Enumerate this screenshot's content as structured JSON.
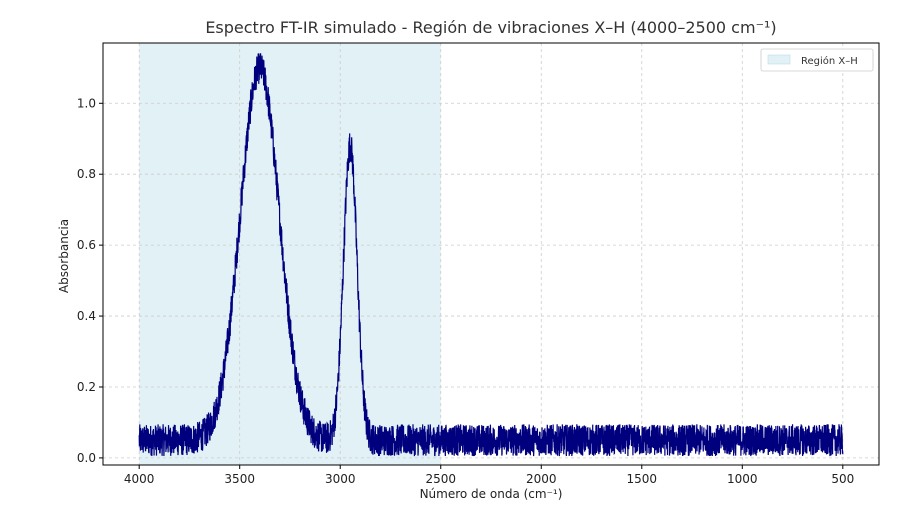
{
  "chart_data": {
    "type": "line",
    "title": "Espectro FT-IR simulado - Región de vibraciones X–H (4000–2500 cm⁻¹)",
    "xlabel": "Número de onda (cm⁻¹)",
    "ylabel": "Absorbancia",
    "x_reversed": true,
    "xlim": [
      4180,
      320
    ],
    "ylim": [
      -0.02,
      1.17
    ],
    "x_ticks": [
      4000,
      3500,
      3000,
      2500,
      2000,
      1500,
      1000,
      500
    ],
    "x_tick_labels": [
      "4000",
      "3500",
      "3000",
      "2500",
      "2000",
      "1500",
      "1000",
      "500"
    ],
    "y_ticks": [
      0.0,
      0.2,
      0.4,
      0.6,
      0.8,
      1.0
    ],
    "y_tick_labels": [
      "0.0",
      "0.2",
      "0.4",
      "0.6",
      "0.8",
      "1.0"
    ],
    "grid": true,
    "legend_position": "top-right",
    "highlight_region": {
      "label": "Región X–H",
      "x_start": 4000,
      "x_end": 2500,
      "color": "#add8e6"
    },
    "series": [
      {
        "color": "#00007f",
        "x_range": [
          4000,
          500
        ],
        "baseline": 0.05,
        "noise_amplitude": 0.045,
        "peaks": [
          {
            "center": 3400,
            "height": 1.05,
            "fwhm": 230
          },
          {
            "center": 2950,
            "height": 0.83,
            "fwhm": 80
          }
        ]
      }
    ]
  }
}
